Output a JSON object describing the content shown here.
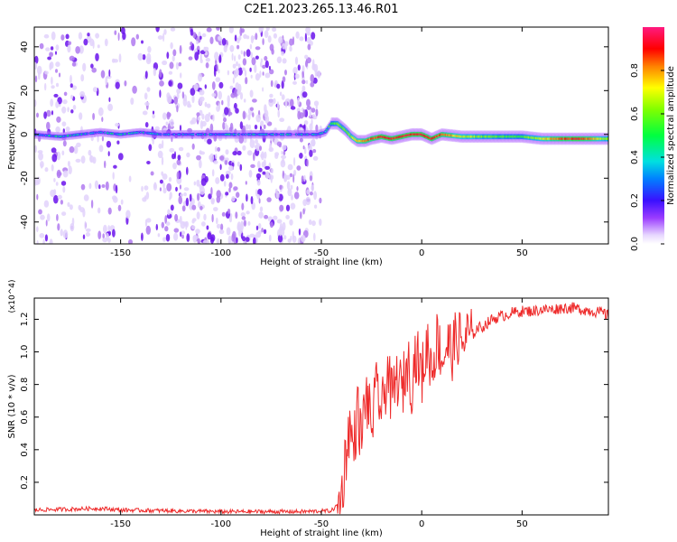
{
  "figure": {
    "title": "C2E1.2023.265.13.46.R01"
  },
  "chart_data": [
    {
      "type": "heatmap",
      "xlabel": "Height of straight line (km)",
      "ylabel": "Frequency (Hz)",
      "xlim": [
        -193,
        93
      ],
      "ylim": [
        -50,
        49
      ],
      "x_ticks": [
        -150,
        -100,
        -50,
        0,
        50
      ],
      "y_ticks": [
        -40,
        -20,
        0,
        20,
        40
      ],
      "grid": false,
      "colorbar": {
        "label": "Normalized spectral amplitude",
        "range": [
          0,
          1
        ],
        "ticks": [
          "0.0",
          "0.2",
          "0.4",
          "0.6",
          "0.8"
        ],
        "colormap": "rainbow (white-violet-blue-cyan-green-yellow-red-magenta)"
      },
      "ridge": {
        "x": [
          -193,
          -180,
          -170,
          -160,
          -150,
          -140,
          -130,
          -60,
          -52,
          -48,
          -45,
          -42,
          -38,
          -35,
          -32,
          -28,
          -25,
          -20,
          -15,
          -10,
          -5,
          0,
          5,
          10,
          20,
          30,
          40,
          50,
          60,
          70,
          80,
          93
        ],
        "y": [
          0,
          -1,
          0,
          1,
          0,
          1,
          0,
          0,
          0,
          1,
          5,
          5,
          2,
          -1,
          -3,
          -3,
          -2,
          -1,
          -2,
          -1,
          0,
          0,
          -2,
          0,
          -1,
          -1,
          -1,
          -1,
          -2,
          -2,
          -2,
          -2
        ],
        "amplitude": [
          0.3,
          0.4,
          0.35,
          0.3,
          0.4,
          0.35,
          0.3,
          0.3,
          0.3,
          0.4,
          0.5,
          0.6,
          0.6,
          0.65,
          0.75,
          0.8,
          0.85,
          0.9,
          0.9,
          0.9,
          0.9,
          0.9,
          0.9,
          0.85,
          0.7,
          0.6,
          0.55,
          0.55,
          0.7,
          0.85,
          0.9,
          0.6
        ]
      },
      "noise_region_x": [
        -193,
        -50
      ]
    },
    {
      "type": "line",
      "xlabel": "Height of straight line (km)",
      "ylabel": "SNR (10 * v/v)",
      "y_multiplier": "(x10^4)",
      "xlim": [
        -193,
        93
      ],
      "ylim": [
        0,
        1.33
      ],
      "x_ticks": [
        -150,
        -100,
        -50,
        0,
        50
      ],
      "y_ticks": [
        "0.2",
        "0.4",
        "0.6",
        "0.8",
        "1.0",
        "1.2"
      ],
      "grid": false,
      "color": "#ee2a2a",
      "series": [
        {
          "x": [
            -193,
            -160,
            -150,
            -100,
            -60,
            -45,
            -42,
            -40,
            -38,
            -36,
            -34,
            -32,
            -30,
            -28,
            -25,
            -22,
            -20,
            -17,
            -15,
            -12,
            -10,
            -7,
            -5,
            -3,
            0,
            3,
            5,
            8,
            10,
            13,
            15,
            18,
            20,
            23,
            25,
            28,
            30,
            35,
            40,
            45,
            50,
            55,
            60,
            65,
            70,
            75,
            80,
            85,
            90,
            93
          ],
          "y": [
            0.03,
            0.04,
            0.03,
            0.02,
            0.02,
            0.025,
            0.06,
            0.1,
            0.35,
            0.55,
            0.4,
            0.65,
            0.45,
            0.75,
            0.55,
            0.8,
            0.6,
            0.9,
            0.7,
            0.85,
            0.75,
            0.95,
            0.8,
            1.0,
            0.85,
            1.05,
            0.9,
            1.1,
            0.95,
            1.05,
            1.0,
            1.1,
            1.05,
            1.1,
            1.1,
            1.15,
            1.15,
            1.2,
            1.22,
            1.24,
            1.25,
            1.25,
            1.26,
            1.26,
            1.27,
            1.27,
            1.26,
            1.25,
            1.24,
            1.22
          ]
        }
      ]
    }
  ]
}
